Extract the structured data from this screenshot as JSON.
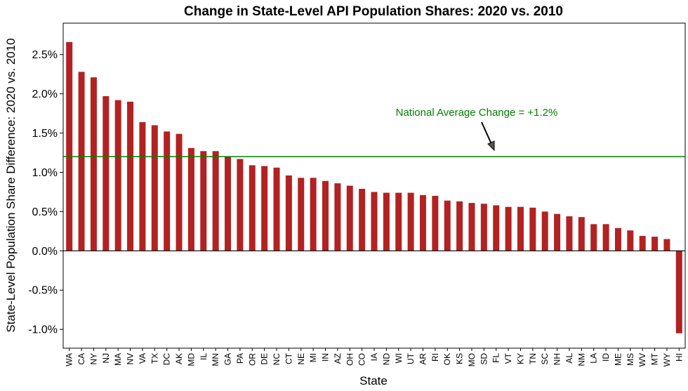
{
  "chart_data": {
    "type": "bar",
    "title": "Change in State-Level API Population Shares: 2020 vs. 2010",
    "xlabel": "State",
    "ylabel": "State-Level Population Share Difference: 2020 vs. 2010",
    "ylim": [
      -1.24,
      2.9
    ],
    "yticks": [
      -1.0,
      -0.5,
      0.0,
      0.5,
      1.0,
      1.5,
      2.0,
      2.5
    ],
    "ytick_labels": [
      "-1.0%",
      "-0.5%",
      "0.0%",
      "0.5%",
      "1.0%",
      "1.5%",
      "2.0%",
      "2.5%"
    ],
    "categories": [
      "WA",
      "CA",
      "NY",
      "NJ",
      "MA",
      "NV",
      "VA",
      "TX",
      "DC",
      "AK",
      "MD",
      "IL",
      "MN",
      "GA",
      "PA",
      "OR",
      "DE",
      "NC",
      "CT",
      "NE",
      "MI",
      "IN",
      "AZ",
      "OH",
      "CO",
      "IA",
      "ND",
      "WI",
      "UT",
      "AR",
      "RI",
      "OK",
      "KS",
      "MO",
      "SD",
      "FL",
      "VT",
      "KY",
      "TN",
      "SC",
      "NH",
      "AL",
      "NM",
      "LA",
      "ID",
      "ME",
      "MS",
      "WV",
      "MT",
      "WY",
      "HI"
    ],
    "values": [
      2.66,
      2.28,
      2.21,
      1.97,
      1.92,
      1.9,
      1.64,
      1.6,
      1.52,
      1.49,
      1.31,
      1.27,
      1.27,
      1.2,
      1.17,
      1.09,
      1.08,
      1.06,
      0.96,
      0.93,
      0.93,
      0.89,
      0.86,
      0.83,
      0.79,
      0.75,
      0.74,
      0.74,
      0.74,
      0.71,
      0.7,
      0.64,
      0.63,
      0.61,
      0.6,
      0.58,
      0.56,
      0.56,
      0.55,
      0.5,
      0.47,
      0.44,
      0.43,
      0.34,
      0.34,
      0.29,
      0.26,
      0.19,
      0.18,
      0.15,
      -1.05
    ],
    "reference_line": {
      "value": 1.2,
      "label": "National Average Change = +1.2%"
    },
    "colors": {
      "bars": "#b22222",
      "reference": "#008000",
      "axis": "#000000"
    },
    "grid": false,
    "legend": "none"
  }
}
